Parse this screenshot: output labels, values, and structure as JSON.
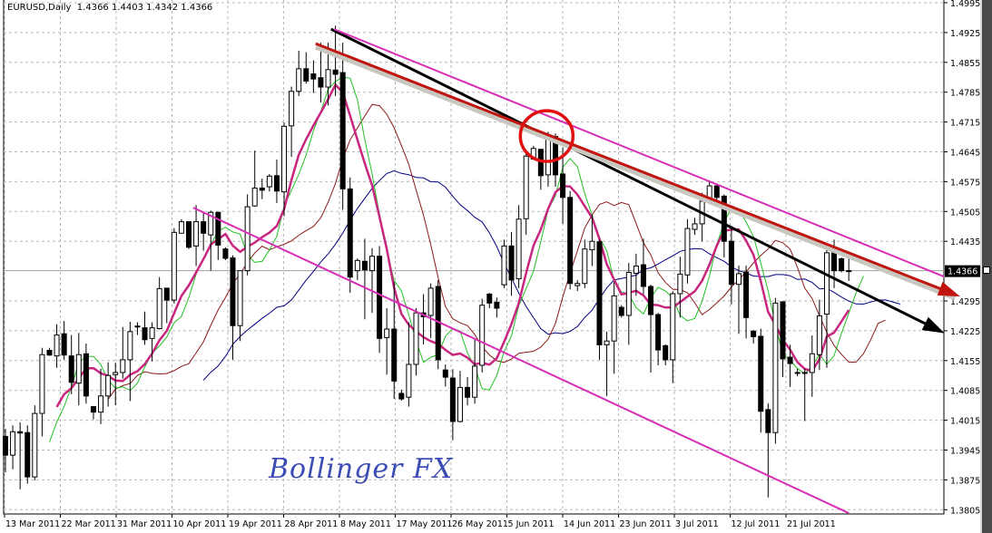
{
  "header": {
    "symbol_timeframe": "EURUSD,Daily",
    "ohlc_readout": "1.4366 1.4403 1.4342 1.4366"
  },
  "watermark": "Bollinger FX",
  "colors": {
    "bull_body": "#ffffff",
    "bear_body": "#000000",
    "grid": "#b8b8b8",
    "sma_fast": "#22c022",
    "sma_mid": "#8b1a1a",
    "sma_slow": "#000080",
    "sma_thick": "#c8267f",
    "trend_black": "#000000",
    "trend_red": "#c0140f",
    "channel_magenta": "#d62fb5",
    "highlight_circle": "#e01010"
  },
  "chart_data": {
    "type": "candlestick",
    "title": "EURUSD,Daily",
    "ylim": [
      1.3805,
      1.4995
    ],
    "y_ticks": [
      "1.4995",
      "1.4925",
      "1.4855",
      "1.4785",
      "1.4715",
      "1.4645",
      "1.4575",
      "1.4505",
      "1.4435",
      "1.4366",
      "1.4295",
      "1.4225",
      "1.4155",
      "1.4085",
      "1.4015",
      "1.3945",
      "1.3875",
      "1.3805"
    ],
    "x_tick_labels": [
      "13 Mar 2011",
      "22 Mar 2011",
      "31 Mar 2011",
      "10 Apr 2011",
      "19 Apr 2011",
      "28 Apr 2011",
      "8 May 2011",
      "17 May 2011",
      "26 May 2011",
      "5 Jun 2011",
      "14 Jun 2011",
      "23 Jun 2011",
      "3 Jul 2011",
      "12 Jul 2011",
      "21 Jul 2011"
    ],
    "last_price": "1.4366",
    "grid": true,
    "ohlc_fields": [
      "open",
      "high",
      "low",
      "close"
    ],
    "candles": [
      [
        1.3977,
        1.3995,
        1.3893,
        1.3933
      ],
      [
        1.3933,
        1.4003,
        1.39,
        1.3988
      ],
      [
        1.3988,
        1.401,
        1.3853,
        1.3985
      ],
      [
        1.3986,
        1.4003,
        1.3866,
        1.3882
      ],
      [
        1.3882,
        1.405,
        1.3874,
        1.4031
      ],
      [
        1.4031,
        1.4185,
        1.3977,
        1.4169
      ],
      [
        1.4179,
        1.4185,
        1.4166,
        1.4168
      ],
      [
        1.4166,
        1.424,
        1.4138,
        1.4215
      ],
      [
        1.4218,
        1.4248,
        1.4157,
        1.4168
      ],
      [
        1.4166,
        1.4215,
        1.4076,
        1.4104
      ],
      [
        1.4102,
        1.422,
        1.405,
        1.4169
      ],
      [
        1.4171,
        1.4195,
        1.4054,
        1.4072
      ],
      [
        1.4047,
        1.4047,
        1.4017,
        1.4034
      ],
      [
        1.4034,
        1.4136,
        1.4006,
        1.4072
      ],
      [
        1.4072,
        1.4151,
        1.4047,
        1.412
      ],
      [
        1.4122,
        1.415,
        1.405,
        1.4127
      ],
      [
        1.4127,
        1.4234,
        1.4113,
        1.4157
      ],
      [
        1.4157,
        1.4246,
        1.406,
        1.4223
      ],
      [
        1.4236,
        1.4245,
        1.4215,
        1.4236
      ],
      [
        1.4232,
        1.427,
        1.4192,
        1.4204
      ],
      [
        1.4207,
        1.4245,
        1.4153,
        1.4232
      ],
      [
        1.423,
        1.4351,
        1.4228,
        1.4324
      ],
      [
        1.4325,
        1.4325,
        1.4243,
        1.4297
      ],
      [
        1.4297,
        1.4466,
        1.4289,
        1.4456
      ],
      [
        1.4454,
        1.4487,
        1.4454,
        1.4481
      ],
      [
        1.4481,
        1.4481,
        1.4417,
        1.4421
      ],
      [
        1.4424,
        1.452,
        1.4377,
        1.4481
      ],
      [
        1.4481,
        1.4501,
        1.4413,
        1.4454
      ],
      [
        1.445,
        1.4507,
        1.4366,
        1.4503
      ],
      [
        1.4503,
        1.4503,
        1.4391,
        1.4426
      ],
      [
        1.4417,
        1.4421,
        1.4391,
        1.4395
      ],
      [
        1.4396,
        1.4402,
        1.4157,
        1.4237
      ],
      [
        1.4237,
        1.4366,
        1.4201,
        1.4366
      ],
      [
        1.4366,
        1.4545,
        1.4355,
        1.4516
      ],
      [
        1.4518,
        1.4648,
        1.4516,
        1.456
      ],
      [
        1.456,
        1.4582,
        1.4534,
        1.4555
      ],
      [
        1.4563,
        1.4593,
        1.4552,
        1.4588
      ],
      [
        1.4589,
        1.4627,
        1.4525,
        1.4553
      ],
      [
        1.4551,
        1.4714,
        1.4494,
        1.4705
      ],
      [
        1.4706,
        1.4798,
        1.4633,
        1.4787
      ],
      [
        1.4787,
        1.4882,
        1.4776,
        1.484
      ],
      [
        1.484,
        1.4879,
        1.4805,
        1.4811
      ],
      [
        1.4828,
        1.486,
        1.4783,
        1.4816
      ],
      [
        1.4819,
        1.4901,
        1.4761,
        1.4797
      ],
      [
        1.4797,
        1.4901,
        1.4754,
        1.4838
      ],
      [
        1.4837,
        1.4941,
        1.4776,
        1.4827
      ],
      [
        1.4831,
        1.4901,
        1.4509,
        1.4558
      ],
      [
        1.4558,
        1.4585,
        1.4314,
        1.4351
      ],
      [
        1.4366,
        1.4395,
        1.4344,
        1.439
      ],
      [
        1.4388,
        1.4441,
        1.4252,
        1.4368
      ],
      [
        1.4366,
        1.4419,
        1.4267,
        1.44
      ],
      [
        1.44,
        1.4424,
        1.4173,
        1.4207
      ],
      [
        1.4209,
        1.4278,
        1.4122,
        1.4229
      ],
      [
        1.4229,
        1.434,
        1.4065,
        1.4107
      ],
      [
        1.4078,
        1.4087,
        1.4061,
        1.4065
      ],
      [
        1.4069,
        1.4245,
        1.4047,
        1.4146
      ],
      [
        1.4146,
        1.4278,
        1.412,
        1.4267
      ],
      [
        1.4267,
        1.4311,
        1.4193,
        1.4258
      ],
      [
        1.4261,
        1.4336,
        1.4208,
        1.4325
      ],
      [
        1.4329,
        1.4344,
        1.4135,
        1.4157
      ],
      [
        1.4133,
        1.4146,
        1.4094,
        1.4116
      ],
      [
        1.4114,
        1.4135,
        1.3968,
        1.4012
      ],
      [
        1.4012,
        1.4131,
        1.401,
        1.4092
      ],
      [
        1.4092,
        1.4116,
        1.405,
        1.4069
      ],
      [
        1.4069,
        1.4204,
        1.4054,
        1.4142
      ],
      [
        1.4144,
        1.43,
        1.4127,
        1.4285
      ],
      [
        1.4311,
        1.4314,
        1.4278,
        1.429
      ],
      [
        1.4292,
        1.4303,
        1.4256,
        1.4278
      ],
      [
        1.4333,
        1.4439,
        1.4325,
        1.4424
      ],
      [
        1.4424,
        1.4457,
        1.4307,
        1.4344
      ],
      [
        1.4347,
        1.452,
        1.4325,
        1.4487
      ],
      [
        1.4488,
        1.4642,
        1.445,
        1.4635
      ],
      [
        1.4628,
        1.4659,
        1.4626,
        1.4653
      ],
      [
        1.4651,
        1.4651,
        1.4556,
        1.4589
      ],
      [
        1.4591,
        1.4692,
        1.4563,
        1.4679
      ],
      [
        1.4681,
        1.4688,
        1.4563,
        1.4591
      ],
      [
        1.4593,
        1.4655,
        1.4476,
        1.4538
      ],
      [
        1.4538,
        1.4553,
        1.4322,
        1.4336
      ],
      [
        1.4331,
        1.4344,
        1.4318,
        1.4336
      ],
      [
        1.4336,
        1.4439,
        1.4325,
        1.4417
      ],
      [
        1.4415,
        1.4498,
        1.4377,
        1.4435
      ],
      [
        1.4434,
        1.4439,
        1.4157,
        1.4192
      ],
      [
        1.4192,
        1.4223,
        1.4072,
        1.4201
      ],
      [
        1.4201,
        1.434,
        1.4124,
        1.4307
      ],
      [
        1.428,
        1.4285,
        1.4256,
        1.4261
      ],
      [
        1.4261,
        1.4384,
        1.4192,
        1.4362
      ],
      [
        1.436,
        1.4406,
        1.4307,
        1.4377
      ],
      [
        1.438,
        1.4441,
        1.4311,
        1.4329
      ],
      [
        1.4329,
        1.4333,
        1.4127,
        1.4263
      ],
      [
        1.4263,
        1.4267,
        1.4144,
        1.418
      ],
      [
        1.419,
        1.4193,
        1.4144,
        1.4157
      ],
      [
        1.4157,
        1.4318,
        1.4102,
        1.4312
      ],
      [
        1.4312,
        1.4399,
        1.4256,
        1.4358
      ],
      [
        1.4356,
        1.4487,
        1.4336,
        1.4465
      ],
      [
        1.4463,
        1.449,
        1.445,
        1.4476
      ],
      [
        1.4476,
        1.4549,
        1.4435,
        1.4529
      ],
      [
        1.453,
        1.4578,
        1.4527,
        1.4565
      ],
      [
        1.4565,
        1.4571,
        1.4523,
        1.4538
      ],
      [
        1.4541,
        1.4545,
        1.4397,
        1.4435
      ],
      [
        1.4435,
        1.4469,
        1.4287,
        1.4334
      ],
      [
        1.4334,
        1.4378,
        1.4218,
        1.4359
      ],
      [
        1.4363,
        1.4378,
        1.4207,
        1.4256
      ],
      [
        1.4224,
        1.4227,
        1.4195,
        1.4211
      ],
      [
        1.4212,
        1.423,
        1.3986,
        1.4036
      ],
      [
        1.404,
        1.4055,
        1.3834,
        1.3986
      ],
      [
        1.3986,
        1.4302,
        1.396,
        1.429
      ],
      [
        1.4293,
        1.4293,
        1.4116,
        1.4159
      ],
      [
        1.4163,
        1.4192,
        1.4093,
        1.4148
      ],
      [
        1.4127,
        1.4136,
        1.4118,
        1.4127
      ],
      [
        1.4127,
        1.4136,
        1.4013,
        1.4127
      ],
      [
        1.4127,
        1.4214,
        1.407,
        1.4171
      ],
      [
        1.4169,
        1.4298,
        1.4133,
        1.426
      ],
      [
        1.4264,
        1.4431,
        1.4138,
        1.4408
      ],
      [
        1.4408,
        1.4439,
        1.4325,
        1.4366
      ],
      [
        1.4394,
        1.4397,
        1.4362,
        1.4366
      ],
      [
        1.4366,
        1.4403,
        1.4342,
        1.4366
      ]
    ],
    "trendlines": [
      {
        "color_key": "trend_black",
        "from": [
          44.4,
          1.4933
        ],
        "to": [
          127.4,
          1.4225
        ],
        "arrow": true
      },
      {
        "color_key": "trend_red",
        "from": [
          42.3,
          1.4899
        ],
        "to": [
          129.5,
          1.431
        ],
        "arrow": true
      },
      {
        "color_key": "channel_magenta",
        "from": [
          44.8,
          1.4933
        ],
        "to": [
          128,
          1.4352
        ],
        "arrow": false
      },
      {
        "color_key": "channel_magenta",
        "from": [
          25.6,
          1.4514
        ],
        "to": [
          115,
          1.3797
        ],
        "arrow": false
      }
    ],
    "highlight": {
      "center": [
        73.8,
        1.4682
      ]
    }
  }
}
